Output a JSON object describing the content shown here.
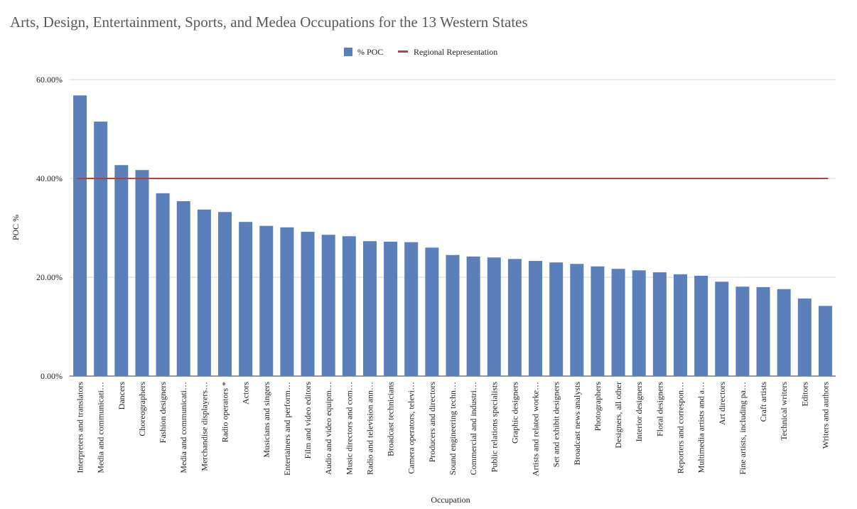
{
  "chart_data": {
    "type": "bar",
    "title": "Arts, Design, Entertainment, Sports, and Medea Occupations for the 13 Western States",
    "xlabel": "Occupation",
    "ylabel": "POC %",
    "ylim": [
      0,
      60
    ],
    "yticks": [
      "0.00%",
      "20.00%",
      "40.00%",
      "60.00%"
    ],
    "grid": true,
    "legend_position": "top",
    "categories": [
      "Interpreters and translators",
      "Media and communicati…",
      "Dancers",
      "Choreographers",
      "Fashion designers",
      "Media and communicati…",
      "Merchandise displayers…",
      "Radio operators *",
      "Actors",
      "Musicians and singers",
      "Entertainers and perform…",
      "Film and video editors",
      "Audio and video equipm…",
      "Music directors and com…",
      "Radio and television ann…",
      "Broadcast technicians",
      "Camera operators, televi…",
      "Producers and directors",
      "Sound engineering techn…",
      "Commercial and industri…",
      "Public relations specialists",
      "Graphic designers",
      "Artists and related worke…",
      "Set and exhibit designers",
      "Broadcast news analysts",
      "Photographers",
      "Designers, all other",
      "Interior designers",
      "Floral designers",
      "Reporters and correspon…",
      "Multimedia artists and a…",
      "Art directors",
      "Fine artists, including pa…",
      "Craft artists",
      "Technical writers",
      "Editors",
      "Writers and authors"
    ],
    "series": [
      {
        "name": "% POC",
        "type": "bar",
        "color": "#5b7fba",
        "values": [
          56.8,
          51.5,
          42.7,
          41.7,
          37.0,
          35.4,
          33.7,
          33.2,
          31.2,
          30.4,
          30.1,
          29.2,
          28.6,
          28.3,
          27.3,
          27.2,
          27.1,
          26.0,
          24.5,
          24.2,
          24.0,
          23.7,
          23.3,
          23.0,
          22.7,
          22.2,
          21.7,
          21.4,
          21.0,
          20.6,
          20.3,
          19.1,
          18.1,
          18.0,
          17.6,
          15.7,
          14.2
        ]
      },
      {
        "name": "Regional Representation",
        "type": "line",
        "color": "#b5423d",
        "value": 40.0
      }
    ]
  }
}
